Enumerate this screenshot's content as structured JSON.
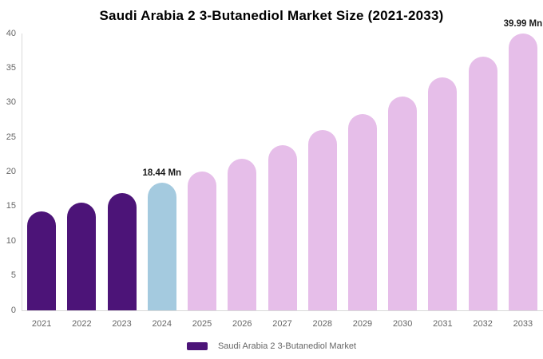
{
  "title": "Saudi Arabia 2 3-Butanediol Market Size (2021-2033)",
  "legend": {
    "label": "Saudi Arabia 2 3-Butanediol Market",
    "swatch_color": "#4C1478"
  },
  "colors": {
    "historical_bar": "#4C1478",
    "highlight_bar": "#A4CADF",
    "forecast_bar": "#E6BEE9",
    "axis_line": "#D9D9D9",
    "tick_text": "#666666",
    "title_text": "#000000",
    "annotation_text": "#1A1A1A"
  },
  "chart_data": {
    "type": "bar",
    "title": "Saudi Arabia 2 3-Butanediol Market Size (2021-2033)",
    "categories": [
      "2021",
      "2022",
      "2023",
      "2024",
      "2025",
      "2026",
      "2027",
      "2028",
      "2029",
      "2030",
      "2031",
      "2032",
      "2033"
    ],
    "values": [
      14.25,
      15.53,
      16.92,
      18.44,
      20.1,
      21.9,
      23.87,
      26.01,
      28.35,
      30.89,
      33.67,
      36.69,
      39.99
    ],
    "unit": "Mn",
    "xlabel": "",
    "ylabel": "",
    "ylim": [
      0,
      40
    ],
    "yticks": [
      0,
      5,
      10,
      15,
      20,
      25,
      30,
      35,
      40
    ],
    "grid": false,
    "legend_position": "bottom",
    "bar_color_keys": [
      "historical_bar",
      "historical_bar",
      "historical_bar",
      "highlight_bar",
      "forecast_bar",
      "forecast_bar",
      "forecast_bar",
      "forecast_bar",
      "forecast_bar",
      "forecast_bar",
      "forecast_bar",
      "forecast_bar",
      "forecast_bar"
    ],
    "annotations": [
      {
        "category": "2024",
        "text": "18.44 Mn"
      },
      {
        "category": "2033",
        "text": "39.99 Mn"
      }
    ]
  }
}
